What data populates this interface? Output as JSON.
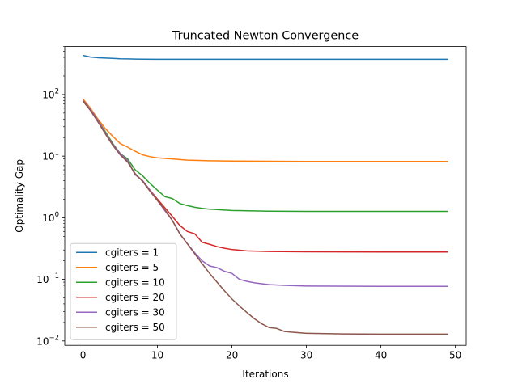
{
  "chart_data": {
    "type": "line",
    "title": "Truncated Newton Convergence",
    "xlabel": "Iterations",
    "ylabel": "Optimality Gap",
    "yscale": "log",
    "xlim": [
      -2.45,
      51.45
    ],
    "ylim": [
      0.0085,
      600
    ],
    "xticks": [
      0,
      10,
      20,
      30,
      40,
      50
    ],
    "yticks": [
      {
        "value": 0.01,
        "base": "10",
        "exp": "−2"
      },
      {
        "value": 0.1,
        "base": "10",
        "exp": "−1"
      },
      {
        "value": 1,
        "base": "10",
        "exp": "0"
      },
      {
        "value": 10,
        "base": "10",
        "exp": "1"
      },
      {
        "value": 100,
        "base": "10",
        "exp": "2"
      }
    ],
    "legend_position": "lower left",
    "grid": false,
    "series": [
      {
        "name": "cgiters = 1",
        "color": "#1f77b4",
        "points": [
          [
            0,
            430
          ],
          [
            1,
            405
          ],
          [
            2,
            395
          ],
          [
            3,
            390
          ],
          [
            4,
            385
          ],
          [
            5,
            380
          ],
          [
            6,
            378
          ],
          [
            7,
            376
          ],
          [
            8,
            374
          ],
          [
            10,
            373
          ],
          [
            15,
            372
          ],
          [
            20,
            372
          ],
          [
            30,
            372
          ],
          [
            40,
            372
          ],
          [
            49,
            372
          ]
        ]
      },
      {
        "name": "cgiters = 5",
        "color": "#ff7f0e",
        "points": [
          [
            0,
            85
          ],
          [
            1,
            60
          ],
          [
            2,
            40
          ],
          [
            3,
            28
          ],
          [
            4,
            21
          ],
          [
            5,
            16
          ],
          [
            6,
            14
          ],
          [
            7,
            12
          ],
          [
            8,
            10.5
          ],
          [
            9,
            9.8
          ],
          [
            10,
            9.4
          ],
          [
            12,
            9
          ],
          [
            14,
            8.6
          ],
          [
            17,
            8.4
          ],
          [
            20,
            8.3
          ],
          [
            25,
            8.25
          ],
          [
            30,
            8.2
          ],
          [
            40,
            8.2
          ],
          [
            49,
            8.2
          ]
        ]
      },
      {
        "name": "cgiters = 10",
        "color": "#2ca02c",
        "points": [
          [
            0,
            80
          ],
          [
            1,
            57
          ],
          [
            2,
            38
          ],
          [
            3,
            25
          ],
          [
            4,
            16
          ],
          [
            5,
            11
          ],
          [
            6,
            9
          ],
          [
            7,
            6
          ],
          [
            8,
            4.8
          ],
          [
            9,
            3.6
          ],
          [
            10,
            2.8
          ],
          [
            11,
            2.2
          ],
          [
            12,
            2.05
          ],
          [
            13,
            1.7
          ],
          [
            14,
            1.58
          ],
          [
            15,
            1.48
          ],
          [
            16,
            1.42
          ],
          [
            17,
            1.38
          ],
          [
            18,
            1.36
          ],
          [
            19,
            1.33
          ],
          [
            20,
            1.31
          ],
          [
            25,
            1.28
          ],
          [
            30,
            1.27
          ],
          [
            40,
            1.27
          ],
          [
            49,
            1.27
          ]
        ]
      },
      {
        "name": "cgiters = 20",
        "color": "#d62728",
        "points": [
          [
            0,
            80
          ],
          [
            1,
            57
          ],
          [
            2,
            38
          ],
          [
            3,
            24
          ],
          [
            4,
            15.5
          ],
          [
            5,
            11
          ],
          [
            6,
            8.5
          ],
          [
            7,
            5
          ],
          [
            8,
            4
          ],
          [
            9,
            2.8
          ],
          [
            10,
            2
          ],
          [
            11,
            1.45
          ],
          [
            12,
            1.05
          ],
          [
            13,
            0.75
          ],
          [
            14,
            0.6
          ],
          [
            15,
            0.55
          ],
          [
            16,
            0.4
          ],
          [
            17,
            0.37
          ],
          [
            18,
            0.34
          ],
          [
            19,
            0.32
          ],
          [
            20,
            0.305
          ],
          [
            22,
            0.29
          ],
          [
            25,
            0.283
          ],
          [
            30,
            0.28
          ],
          [
            40,
            0.278
          ],
          [
            49,
            0.278
          ]
        ]
      },
      {
        "name": "cgiters = 30",
        "color": "#9467bd",
        "points": [
          [
            0,
            80
          ],
          [
            1,
            57
          ],
          [
            2,
            38
          ],
          [
            3,
            24
          ],
          [
            4,
            15.5
          ],
          [
            5,
            11
          ],
          [
            6,
            8.5
          ],
          [
            7,
            5
          ],
          [
            8,
            4
          ],
          [
            9,
            2.8
          ],
          [
            10,
            1.9
          ],
          [
            11,
            1.3
          ],
          [
            12,
            0.9
          ],
          [
            13,
            0.55
          ],
          [
            14,
            0.38
          ],
          [
            15,
            0.27
          ],
          [
            16,
            0.2
          ],
          [
            17,
            0.165
          ],
          [
            18,
            0.155
          ],
          [
            19,
            0.135
          ],
          [
            20,
            0.125
          ],
          [
            21,
            0.1
          ],
          [
            22,
            0.093
          ],
          [
            23,
            0.088
          ],
          [
            24,
            0.085
          ],
          [
            25,
            0.082
          ],
          [
            27,
            0.08
          ],
          [
            30,
            0.078
          ],
          [
            40,
            0.077
          ],
          [
            49,
            0.077
          ]
        ]
      },
      {
        "name": "cgiters = 50",
        "color": "#8c564b",
        "points": [
          [
            0,
            78
          ],
          [
            1,
            55
          ],
          [
            2,
            36
          ],
          [
            3,
            23
          ],
          [
            4,
            15
          ],
          [
            5,
            10.5
          ],
          [
            6,
            8
          ],
          [
            7,
            5.2
          ],
          [
            8,
            3.9
          ],
          [
            9,
            2.7
          ],
          [
            10,
            1.9
          ],
          [
            11,
            1.35
          ],
          [
            12,
            0.9
          ],
          [
            13,
            0.55
          ],
          [
            14,
            0.38
          ],
          [
            15,
            0.26
          ],
          [
            16,
            0.18
          ],
          [
            17,
            0.125
          ],
          [
            18,
            0.09
          ],
          [
            19,
            0.065
          ],
          [
            20,
            0.048
          ],
          [
            21,
            0.037
          ],
          [
            22,
            0.029
          ],
          [
            23,
            0.023
          ],
          [
            24,
            0.019
          ],
          [
            25,
            0.0165
          ],
          [
            26,
            0.016
          ],
          [
            27,
            0.0143
          ],
          [
            28,
            0.0139
          ],
          [
            30,
            0.0133
          ],
          [
            35,
            0.013
          ],
          [
            40,
            0.0129
          ],
          [
            49,
            0.0129
          ]
        ]
      }
    ]
  }
}
